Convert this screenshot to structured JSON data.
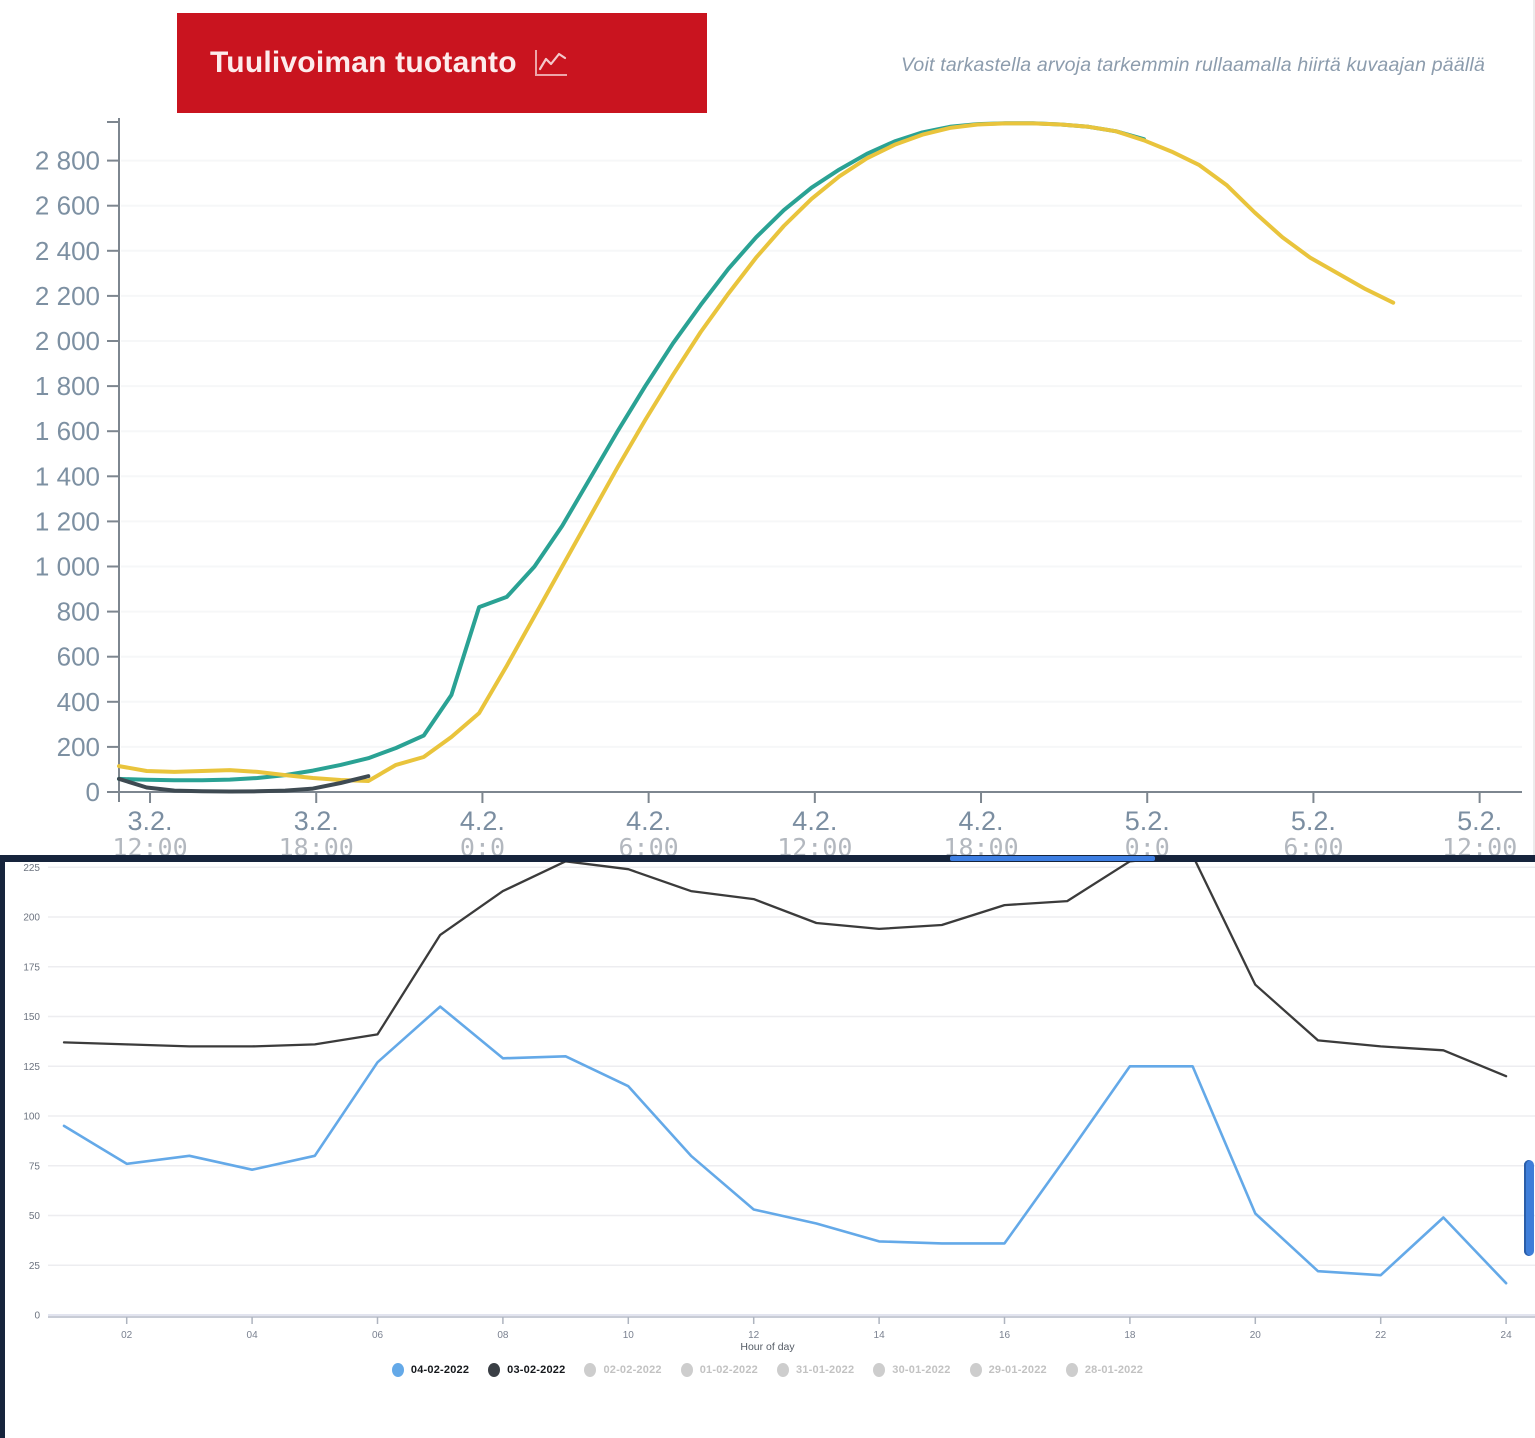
{
  "top_chart": {
    "title": "Tuulivoiman tuotanto",
    "hint": "Voit tarkastella arvoja tarkemmin rullaamalla hiirtä kuvaajan päällä",
    "chart_data": {
      "type": "line",
      "title": "Tuulivoiman tuotanto",
      "ylabel": "",
      "ylim": [
        0,
        2960
      ],
      "y_tick_step": 200,
      "grid": "faint-horizontal",
      "x_ticks": [
        {
          "date": "3.2.",
          "time": "12:00"
        },
        {
          "date": "3.2.",
          "time": "18:00"
        },
        {
          "date": "4.2.",
          "time": "0:0"
        },
        {
          "date": "4.2.",
          "time": "6:00"
        },
        {
          "date": "4.2.",
          "time": "12:00"
        },
        {
          "date": "4.2.",
          "time": "18:00"
        },
        {
          "date": "5.2.",
          "time": "0:0"
        },
        {
          "date": "5.2.",
          "time": "6:00"
        },
        {
          "date": "5.2.",
          "time": "12:00"
        }
      ],
      "interval_hours": 1,
      "series": [
        {
          "name": "teal-production-line",
          "color": "#2aa294",
          "values": [
            58,
            54,
            52,
            52,
            55,
            62,
            75,
            95,
            120,
            150,
            195,
            250,
            430,
            820,
            865,
            1000,
            1180,
            1390,
            1600,
            1800,
            1990,
            2160,
            2320,
            2460,
            2580,
            2680,
            2760,
            2830,
            2885,
            2925,
            2950,
            2962,
            2966,
            2966,
            2960,
            2950,
            2930,
            2895
          ]
        },
        {
          "name": "yellow-production-line",
          "color": "#e9c43c",
          "values": [
            115,
            93,
            89,
            93,
            97,
            89,
            75,
            62,
            53,
            49,
            120,
            155,
            244,
            350,
            560,
            780,
            1000,
            1220,
            1440,
            1650,
            1850,
            2040,
            2210,
            2370,
            2510,
            2630,
            2730,
            2810,
            2870,
            2915,
            2945,
            2960,
            2965,
            2965,
            2960,
            2950,
            2930,
            2890,
            2840,
            2780,
            2690,
            2570,
            2460,
            2370,
            2300,
            2230,
            2170
          ]
        },
        {
          "name": "dark-production-line",
          "color": "#3e4a52",
          "values": [
            58,
            20,
            6,
            3,
            2,
            3,
            6,
            15,
            40,
            70
          ]
        }
      ]
    }
  },
  "bottom_chart": {
    "chart_data": {
      "type": "line",
      "xlabel": "Hour of day",
      "ylim": [
        0,
        225
      ],
      "y_tick_step": 25,
      "grid": "horizontal",
      "x": [
        1,
        2,
        3,
        4,
        5,
        6,
        7,
        8,
        9,
        10,
        11,
        12,
        13,
        14,
        15,
        16,
        17,
        18,
        19,
        20,
        21,
        22,
        23,
        24
      ],
      "x_tick_labels": [
        "02",
        "04",
        "06",
        "08",
        "10",
        "12",
        "14",
        "16",
        "18",
        "20",
        "22",
        "24"
      ],
      "series": [
        {
          "name": "04-02-2022",
          "color": "#64a9e8",
          "values": [
            95,
            76,
            80,
            73,
            80,
            127,
            155,
            129,
            130,
            115,
            80,
            53,
            46,
            37,
            36,
            36,
            80,
            125,
            125,
            51,
            22,
            20,
            49,
            16
          ]
        },
        {
          "name": "03-02-2022",
          "color": "#3b3b3b",
          "values": [
            137,
            136,
            135,
            135,
            136,
            141,
            191,
            213,
            228,
            224,
            213,
            209,
            197,
            194,
            196,
            206,
            208,
            228,
            231,
            166,
            138,
            135,
            133,
            120
          ]
        }
      ],
      "legend_position": "bottom",
      "legend": [
        {
          "label": "04-02-2022",
          "color": "#64a9e8",
          "active": true
        },
        {
          "label": "03-02-2022",
          "color": "#3a3f45",
          "active": true
        },
        {
          "label": "02-02-2022",
          "color": "#cdcdcd",
          "active": false
        },
        {
          "label": "01-02-2022",
          "color": "#cdcdcd",
          "active": false
        },
        {
          "label": "31-01-2022",
          "color": "#cdcdcd",
          "active": false
        },
        {
          "label": "30-01-2022",
          "color": "#cdcdcd",
          "active": false
        },
        {
          "label": "29-01-2022",
          "color": "#cdcdcd",
          "active": false
        },
        {
          "label": "28-01-2022",
          "color": "#cdcdcd",
          "active": false
        }
      ]
    }
  },
  "colors": {
    "title_box": "#c9141f",
    "title_text": "#fdecec",
    "hint_text": "#8c9cad",
    "axis_label": "#7d90a2",
    "time_label": "#b3b8bf",
    "separator_band": "#16243c",
    "scroll_thumb": "#3d7ee2"
  }
}
